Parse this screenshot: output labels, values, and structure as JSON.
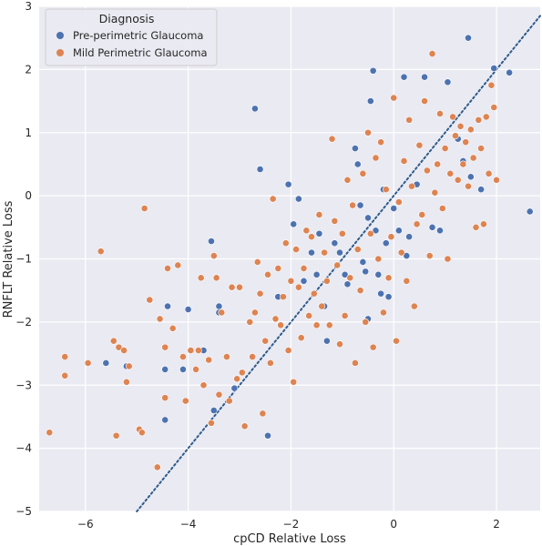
{
  "chart_data": {
    "type": "scatter",
    "xlabel": "cpCD Relative Loss",
    "ylabel": "RNFLT Relative Loss",
    "xlim": [
      -6.9,
      2.85
    ],
    "ylim": [
      -5,
      3
    ],
    "xticks": [
      -6,
      -4,
      -2,
      0,
      2
    ],
    "yticks": [
      -5,
      -4,
      -3,
      -2,
      -1,
      0,
      1,
      2,
      3
    ],
    "xtick_labels": [
      "−6",
      "−4",
      "−2",
      "0",
      "2"
    ],
    "ytick_labels": [
      "−5",
      "−4",
      "−3",
      "−2",
      "−1",
      "0",
      "1",
      "2",
      "3"
    ],
    "grid": true,
    "background": "#eaeaf2",
    "legend": {
      "title": "Diagnosis",
      "placement": "top-left",
      "entries": [
        "Pre-perimetric Glaucoma",
        "Mild Perimetric Glaucoma"
      ]
    },
    "reference_line": {
      "style": "dotted",
      "color": "#2d5b8c",
      "slope": 1,
      "intercept": 0
    },
    "series": [
      {
        "name": "Pre-perimetric Glaucoma",
        "color": "#4c72b0",
        "points": [
          [
            -5.6,
            -2.65
          ],
          [
            -5.2,
            -2.7
          ],
          [
            -4.45,
            -3.55
          ],
          [
            -4.45,
            -2.75
          ],
          [
            -4.4,
            -1.75
          ],
          [
            -4.1,
            -2.75
          ],
          [
            -4.0,
            -1.8
          ],
          [
            -3.7,
            -2.45
          ],
          [
            -3.55,
            -0.72
          ],
          [
            -3.5,
            -3.4
          ],
          [
            -3.4,
            -1.75
          ],
          [
            -3.4,
            -1.85
          ],
          [
            -3.1,
            -3.05
          ],
          [
            -2.7,
            1.38
          ],
          [
            -2.6,
            0.42
          ],
          [
            -2.45,
            -3.8
          ],
          [
            -2.25,
            -1.6
          ],
          [
            -2.05,
            0.18
          ],
          [
            -1.95,
            -0.45
          ],
          [
            -1.85,
            -0.05
          ],
          [
            -1.75,
            -1.35
          ],
          [
            -1.6,
            -0.9
          ],
          [
            -1.5,
            -1.25
          ],
          [
            -1.45,
            -0.6
          ],
          [
            -1.35,
            -1.75
          ],
          [
            -1.3,
            -2.3
          ],
          [
            -1.15,
            -0.75
          ],
          [
            -1.05,
            -0.9
          ],
          [
            -0.95,
            -1.25
          ],
          [
            -0.9,
            -1.4
          ],
          [
            -0.75,
            0.75
          ],
          [
            -0.7,
            0.5
          ],
          [
            -0.65,
            -0.15
          ],
          [
            -0.6,
            -1.05
          ],
          [
            -0.55,
            -1.2
          ],
          [
            -0.5,
            -1.95
          ],
          [
            -0.5,
            -0.35
          ],
          [
            -0.45,
            1.5
          ],
          [
            -0.4,
            1.98
          ],
          [
            -0.35,
            -0.55
          ],
          [
            -0.3,
            -1.25
          ],
          [
            -0.25,
            -1.55
          ],
          [
            -0.2,
            0.1
          ],
          [
            -0.15,
            -0.75
          ],
          [
            -0.1,
            -1.6
          ],
          [
            0.0,
            -0.2
          ],
          [
            0.1,
            -0.55
          ],
          [
            0.2,
            1.88
          ],
          [
            0.25,
            -0.95
          ],
          [
            0.3,
            -0.65
          ],
          [
            0.45,
            0.18
          ],
          [
            0.6,
            1.88
          ],
          [
            0.75,
            -0.5
          ],
          [
            0.9,
            -0.55
          ],
          [
            1.05,
            1.8
          ],
          [
            1.25,
            0.9
          ],
          [
            1.35,
            0.55
          ],
          [
            1.45,
            2.5
          ],
          [
            1.5,
            0.3
          ],
          [
            1.7,
            0.1
          ],
          [
            1.95,
            2.02
          ],
          [
            2.25,
            1.95
          ],
          [
            2.65,
            -0.25
          ]
        ]
      },
      {
        "name": "Mild Perimetric Glaucoma",
        "color": "#dd8452",
        "points": [
          [
            -6.7,
            -3.75
          ],
          [
            -6.4,
            -2.85
          ],
          [
            -6.4,
            -2.55
          ],
          [
            -5.95,
            -2.65
          ],
          [
            -5.7,
            -0.88
          ],
          [
            -5.45,
            -2.3
          ],
          [
            -5.4,
            -3.8
          ],
          [
            -5.35,
            -2.4
          ],
          [
            -5.25,
            -2.45
          ],
          [
            -5.2,
            -2.95
          ],
          [
            -5.15,
            -2.7
          ],
          [
            -4.95,
            -3.7
          ],
          [
            -4.9,
            -3.75
          ],
          [
            -4.85,
            -0.2
          ],
          [
            -4.75,
            -1.65
          ],
          [
            -4.6,
            -4.3
          ],
          [
            -4.55,
            -1.95
          ],
          [
            -4.45,
            -2.4
          ],
          [
            -4.45,
            -3.2
          ],
          [
            -4.4,
            -1.15
          ],
          [
            -4.3,
            -2.1
          ],
          [
            -4.2,
            -1.1
          ],
          [
            -4.1,
            -2.55
          ],
          [
            -4.05,
            -3.25
          ],
          [
            -3.95,
            -2.45
          ],
          [
            -3.85,
            -2.75
          ],
          [
            -3.8,
            -2.45
          ],
          [
            -3.75,
            -1.3
          ],
          [
            -3.7,
            -3.0
          ],
          [
            -3.6,
            -2.6
          ],
          [
            -3.55,
            -3.6
          ],
          [
            -3.5,
            -0.95
          ],
          [
            -3.45,
            -1.3
          ],
          [
            -3.4,
            -3.15
          ],
          [
            -3.35,
            -1.85
          ],
          [
            -3.25,
            -2.55
          ],
          [
            -3.2,
            -3.25
          ],
          [
            -3.15,
            -1.45
          ],
          [
            -3.05,
            -2.9
          ],
          [
            -3.0,
            -1.45
          ],
          [
            -2.95,
            -2.8
          ],
          [
            -2.9,
            -3.65
          ],
          [
            -2.8,
            -2.0
          ],
          [
            -2.75,
            -2.55
          ],
          [
            -2.7,
            -1.85
          ],
          [
            -2.65,
            -1.05
          ],
          [
            -2.6,
            -1.55
          ],
          [
            -2.55,
            -3.45
          ],
          [
            -2.5,
            -2.3
          ],
          [
            -2.45,
            -1.25
          ],
          [
            -2.4,
            -2.65
          ],
          [
            -2.35,
            -0.05
          ],
          [
            -2.3,
            -1.95
          ],
          [
            -2.25,
            -1.15
          ],
          [
            -2.2,
            -2.05
          ],
          [
            -2.15,
            -1.6
          ],
          [
            -2.1,
            -0.75
          ],
          [
            -2.05,
            -2.45
          ],
          [
            -2.0,
            -1.35
          ],
          [
            -1.95,
            -2.95
          ],
          [
            -1.9,
            -0.85
          ],
          [
            -1.85,
            -1.45
          ],
          [
            -1.8,
            -2.25
          ],
          [
            -1.75,
            -1.15
          ],
          [
            -1.7,
            -0.55
          ],
          [
            -1.65,
            -1.9
          ],
          [
            -1.6,
            -0.65
          ],
          [
            -1.55,
            -1.55
          ],
          [
            -1.5,
            -2.05
          ],
          [
            -1.45,
            -0.3
          ],
          [
            -1.4,
            -1.75
          ],
          [
            -1.35,
            -0.9
          ],
          [
            -1.3,
            -1.35
          ],
          [
            -1.25,
            -2.05
          ],
          [
            -1.2,
            0.9
          ],
          [
            -1.15,
            -0.4
          ],
          [
            -1.1,
            -1.1
          ],
          [
            -1.05,
            -2.35
          ],
          [
            -1.0,
            -0.6
          ],
          [
            -0.95,
            -1.9
          ],
          [
            -0.9,
            0.25
          ],
          [
            -0.85,
            -1.3
          ],
          [
            -0.8,
            -0.15
          ],
          [
            -0.75,
            -2.65
          ],
          [
            -0.7,
            -0.85
          ],
          [
            -0.65,
            -1.5
          ],
          [
            -0.6,
            0.35
          ],
          [
            -0.55,
            -2.0
          ],
          [
            -0.5,
            1.0
          ],
          [
            -0.45,
            -0.6
          ],
          [
            -0.4,
            -2.4
          ],
          [
            -0.35,
            0.6
          ],
          [
            -0.3,
            -1.0
          ],
          [
            -0.25,
            0.85
          ],
          [
            -0.2,
            -1.85
          ],
          [
            -0.15,
            0.1
          ],
          [
            -0.1,
            -1.3
          ],
          [
            -0.05,
            -0.65
          ],
          [
            0.0,
            1.55
          ],
          [
            0.05,
            -2.3
          ],
          [
            0.1,
            -0.1
          ],
          [
            0.15,
            -0.9
          ],
          [
            0.2,
            0.55
          ],
          [
            0.25,
            -1.35
          ],
          [
            0.3,
            1.2
          ],
          [
            0.35,
            0.15
          ],
          [
            0.4,
            -1.75
          ],
          [
            0.45,
            -0.45
          ],
          [
            0.5,
            0.8
          ],
          [
            0.55,
            -0.3
          ],
          [
            0.6,
            1.5
          ],
          [
            0.65,
            0.4
          ],
          [
            0.7,
            -0.95
          ],
          [
            0.75,
            2.25
          ],
          [
            0.8,
            0.05
          ],
          [
            0.85,
            0.5
          ],
          [
            0.9,
            1.3
          ],
          [
            0.95,
            -0.2
          ],
          [
            1.0,
            0.75
          ],
          [
            1.05,
            -1.0
          ],
          [
            1.1,
            0.35
          ],
          [
            1.15,
            1.25
          ],
          [
            1.2,
            0.95
          ],
          [
            1.25,
            0.25
          ],
          [
            1.3,
            1.1
          ],
          [
            1.35,
            0.5
          ],
          [
            1.4,
            0.85
          ],
          [
            1.45,
            0.15
          ],
          [
            1.5,
            1.05
          ],
          [
            1.55,
            0.6
          ],
          [
            1.6,
            -0.5
          ],
          [
            1.65,
            1.2
          ],
          [
            1.7,
            0.75
          ],
          [
            1.75,
            -0.45
          ],
          [
            1.8,
            1.25
          ],
          [
            1.85,
            0.35
          ],
          [
            1.9,
            1.75
          ],
          [
            1.95,
            1.4
          ],
          [
            2.0,
            0.25
          ]
        ]
      }
    ]
  }
}
